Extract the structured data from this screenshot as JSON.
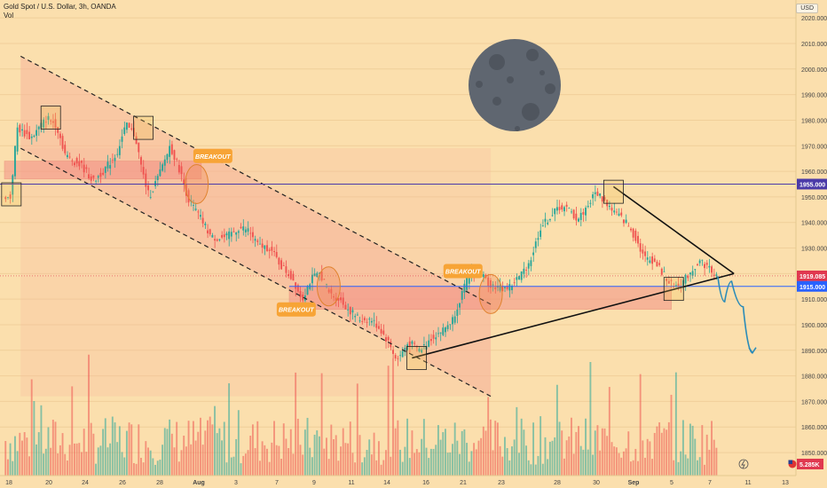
{
  "header": {
    "symbol": "Gold Spot / U.S. Dollar, 3h, OANDA",
    "vol": "Vol"
  },
  "currency": "USD",
  "colors": {
    "background": "#fbdfad",
    "up": "#26a69a",
    "down": "#ef5350",
    "horizontal_line": "#4a3aa8",
    "current_price_tag": "#e0384f",
    "level_tag": "#2962ff",
    "breakout_tag": "#f7a436",
    "channel_fill": "#f8b59a",
    "zone_fill": "#f38a83",
    "moon": "#5f6670"
  },
  "chart_data": {
    "type": "candlestick",
    "title": "Gold Spot / U.S. Dollar, 3h, OANDA",
    "price_axis": {
      "ylim": [
        1841,
        2027
      ],
      "ticks": [
        2020,
        2010,
        2000,
        1990,
        1980,
        1970,
        1960,
        1950,
        1940,
        1930,
        1920,
        1910,
        1900,
        1890,
        1880,
        1870,
        1860,
        1850
      ],
      "tags": [
        {
          "label": "1955.000",
          "value": 1955
        },
        {
          "label": "1919.085",
          "value": 1919.085
        },
        {
          "label": "1915.000",
          "value": 1915
        }
      ]
    },
    "time_axis": {
      "labels": [
        "18",
        "20",
        "24",
        "26",
        "28",
        "Aug",
        "3",
        "7",
        "9",
        "11",
        "14",
        "16",
        "21",
        "23",
        "28",
        "30",
        "Sep",
        "5",
        "7",
        "11",
        "13"
      ]
    },
    "volume_label": "5.285K",
    "price_path": [
      {
        "t": 0,
        "v": 1951
      },
      {
        "t": 0.3,
        "v": 1949
      },
      {
        "t": 0.6,
        "v": 1977
      },
      {
        "t": 1.2,
        "v": 1973
      },
      {
        "t": 1.9,
        "v": 1981
      },
      {
        "t": 2.3,
        "v": 1978
      },
      {
        "t": 2.7,
        "v": 1966
      },
      {
        "t": 3.4,
        "v": 1962
      },
      {
        "t": 3.9,
        "v": 1956
      },
      {
        "t": 4.4,
        "v": 1961
      },
      {
        "t": 4.9,
        "v": 1967
      },
      {
        "t": 5.3,
        "v": 1978
      },
      {
        "t": 5.7,
        "v": 1974
      },
      {
        "t": 6.0,
        "v": 1960
      },
      {
        "t": 6.3,
        "v": 1950
      },
      {
        "t": 6.8,
        "v": 1960
      },
      {
        "t": 7.2,
        "v": 1970
      },
      {
        "t": 7.6,
        "v": 1961
      },
      {
        "t": 8.0,
        "v": 1949
      },
      {
        "t": 8.5,
        "v": 1942
      },
      {
        "t": 9.0,
        "v": 1934
      },
      {
        "t": 9.6,
        "v": 1934
      },
      {
        "t": 10.2,
        "v": 1938
      },
      {
        "t": 10.6,
        "v": 1937
      },
      {
        "t": 11.0,
        "v": 1931
      },
      {
        "t": 11.5,
        "v": 1930
      },
      {
        "t": 12.0,
        "v": 1923
      },
      {
        "t": 12.5,
        "v": 1918
      },
      {
        "t": 12.9,
        "v": 1910
      },
      {
        "t": 13.3,
        "v": 1918
      },
      {
        "t": 13.7,
        "v": 1920
      },
      {
        "t": 14.1,
        "v": 1912
      },
      {
        "t": 14.5,
        "v": 1910
      },
      {
        "t": 14.9,
        "v": 1906
      },
      {
        "t": 15.4,
        "v": 1902
      },
      {
        "t": 15.9,
        "v": 1902
      },
      {
        "t": 16.3,
        "v": 1898
      },
      {
        "t": 16.7,
        "v": 1892
      },
      {
        "t": 17.0,
        "v": 1886
      },
      {
        "t": 17.5,
        "v": 1893
      },
      {
        "t": 18.0,
        "v": 1890
      },
      {
        "t": 18.5,
        "v": 1895
      },
      {
        "t": 19.0,
        "v": 1898
      },
      {
        "t": 19.4,
        "v": 1902
      },
      {
        "t": 19.8,
        "v": 1912
      },
      {
        "t": 20.2,
        "v": 1921
      },
      {
        "t": 20.6,
        "v": 1920
      },
      {
        "t": 21.0,
        "v": 1916
      },
      {
        "t": 21.5,
        "v": 1914
      },
      {
        "t": 21.9,
        "v": 1915
      },
      {
        "t": 22.4,
        "v": 1920
      },
      {
        "t": 22.8,
        "v": 1926
      },
      {
        "t": 23.2,
        "v": 1938
      },
      {
        "t": 23.6,
        "v": 1942
      },
      {
        "t": 24.0,
        "v": 1946
      },
      {
        "t": 24.4,
        "v": 1945
      },
      {
        "t": 24.8,
        "v": 1941
      },
      {
        "t": 25.2,
        "v": 1946
      },
      {
        "t": 25.6,
        "v": 1952
      },
      {
        "t": 26.0,
        "v": 1948
      },
      {
        "t": 26.4,
        "v": 1944
      },
      {
        "t": 26.9,
        "v": 1940
      },
      {
        "t": 27.3,
        "v": 1934
      },
      {
        "t": 27.7,
        "v": 1926
      },
      {
        "t": 28.1,
        "v": 1925
      },
      {
        "t": 28.5,
        "v": 1920
      },
      {
        "t": 28.9,
        "v": 1915
      },
      {
        "t": 29.3,
        "v": 1916
      },
      {
        "t": 29.7,
        "v": 1921
      },
      {
        "t": 30.1,
        "v": 1925
      },
      {
        "t": 30.5,
        "v": 1922
      },
      {
        "t": 30.8,
        "v": 1919
      }
    ],
    "horizontal_levels": [
      1955,
      1915
    ],
    "descending_channel": {
      "upper": [
        {
          "t": 0.7,
          "v": 2005
        },
        {
          "t": 21.0,
          "v": 1908
        }
      ],
      "lower": [
        {
          "t": 0.7,
          "v": 1969
        },
        {
          "t": 21.0,
          "v": 1872
        }
      ]
    },
    "resistance_zone": {
      "t0": 0,
      "t1": 8.5,
      "v0": 1957,
      "v1": 1964
    },
    "support_zone": {
      "t0": 12.3,
      "t1": 28.8,
      "v0": 1906,
      "v1": 1915
    },
    "triangle": {
      "apex": {
        "t": 31.5,
        "v": 1920
      },
      "upper_start": {
        "t": 26.3,
        "v": 1954
      },
      "lower_start": {
        "t": 17.6,
        "v": 1887
      }
    },
    "projection": [
      {
        "t": 30.8,
        "v": 1919
      },
      {
        "t": 31.1,
        "v": 1909
      },
      {
        "t": 31.4,
        "v": 1917
      },
      {
        "t": 31.9,
        "v": 1907
      },
      {
        "t": 32.3,
        "v": 1889
      }
    ],
    "pivot_boxes": [
      {
        "t": 0.3,
        "v": 1951
      },
      {
        "t": 2.0,
        "v": 1981
      },
      {
        "t": 6.0,
        "v": 1977
      },
      {
        "t": 17.8,
        "v": 1887
      },
      {
        "t": 26.3,
        "v": 1952
      },
      {
        "t": 28.9,
        "v": 1914
      }
    ],
    "breakout_circles": [
      {
        "t": 8.3,
        "v": 1955
      },
      {
        "t": 14.0,
        "v": 1915
      },
      {
        "t": 21.0,
        "v": 1912
      }
    ],
    "annotations": [
      {
        "text": "BREAKOUT",
        "t": 9.0,
        "v": 1966
      },
      {
        "text": "BREAKOUT",
        "t": 12.6,
        "v": 1906
      },
      {
        "text": "BREAKOUT",
        "t": 19.8,
        "v": 1921
      }
    ]
  }
}
